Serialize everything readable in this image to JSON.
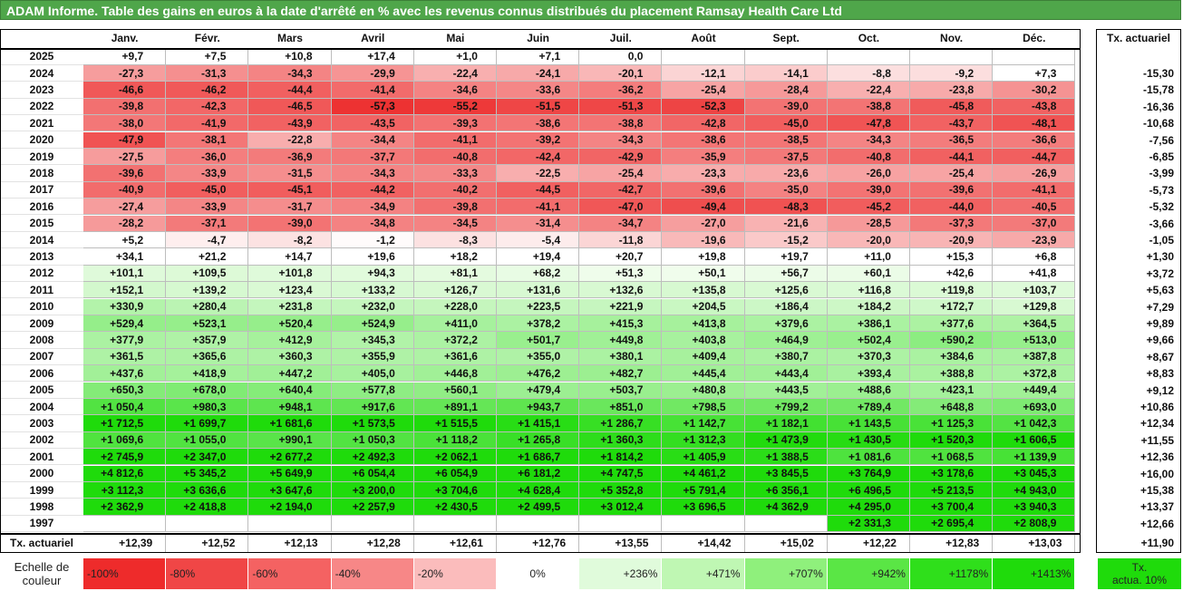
{
  "title": "ADAM Informe. Table des gains en euros à la date d'arrêté en % avec les revenus connus distribués du placement Ramsay Health Care Ltd",
  "chart_data": {
    "type": "heatmap",
    "months": [
      "Janv.",
      "Févr.",
      "Mars",
      "Avril",
      "Mai",
      "Juin",
      "Juil.",
      "Août",
      "Sept.",
      "Oct.",
      "Nov.",
      "Déc."
    ],
    "annual_header": "Tx. actuariel",
    "rows": [
      {
        "year": "2025",
        "values": [
          "+9,7",
          "+7,5",
          "+10,8",
          "+17,4",
          "+1,0",
          "+7,1",
          "0,0",
          "",
          "",
          "",
          "",
          ""
        ],
        "annual": ""
      },
      {
        "year": "2024",
        "values": [
          "-27,3",
          "-31,3",
          "-34,3",
          "-29,9",
          "-22,4",
          "-24,1",
          "-20,1",
          "-12,1",
          "-14,1",
          "-8,8",
          "-9,2",
          "+7,3"
        ],
        "annual": "-15,30"
      },
      {
        "year": "2023",
        "values": [
          "-46,6",
          "-46,2",
          "-44,4",
          "-41,4",
          "-34,6",
          "-33,6",
          "-36,2",
          "-25,4",
          "-28,4",
          "-22,4",
          "-23,8",
          "-30,2"
        ],
        "annual": "-15,78"
      },
      {
        "year": "2022",
        "values": [
          "-39,8",
          "-42,3",
          "-46,5",
          "-57,3",
          "-55,2",
          "-51,5",
          "-51,3",
          "-52,3",
          "-39,0",
          "-38,8",
          "-45,8",
          "-43,8"
        ],
        "annual": "-16,36"
      },
      {
        "year": "2021",
        "values": [
          "-38,0",
          "-41,9",
          "-43,9",
          "-43,5",
          "-39,3",
          "-38,6",
          "-38,8",
          "-42,8",
          "-45,0",
          "-47,8",
          "-43,7",
          "-48,1"
        ],
        "annual": "-10,68"
      },
      {
        "year": "2020",
        "values": [
          "-47,9",
          "-38,1",
          "-22,8",
          "-34,4",
          "-41,1",
          "-39,2",
          "-34,3",
          "-38,6",
          "-38,5",
          "-34,3",
          "-36,5",
          "-36,6"
        ],
        "annual": "-7,56"
      },
      {
        "year": "2019",
        "values": [
          "-27,5",
          "-36,0",
          "-36,9",
          "-37,7",
          "-40,8",
          "-42,4",
          "-42,9",
          "-35,9",
          "-37,5",
          "-40,8",
          "-44,1",
          "-44,7"
        ],
        "annual": "-6,85"
      },
      {
        "year": "2018",
        "values": [
          "-39,6",
          "-33,9",
          "-31,5",
          "-34,3",
          "-33,3",
          "-22,5",
          "-25,4",
          "-23,3",
          "-23,6",
          "-26,0",
          "-25,4",
          "-26,9"
        ],
        "annual": "-3,99"
      },
      {
        "year": "2017",
        "values": [
          "-40,9",
          "-45,0",
          "-45,1",
          "-44,2",
          "-40,2",
          "-44,5",
          "-42,7",
          "-39,6",
          "-35,0",
          "-39,0",
          "-39,6",
          "-41,1"
        ],
        "annual": "-5,73"
      },
      {
        "year": "2016",
        "values": [
          "-27,4",
          "-33,9",
          "-31,7",
          "-34,9",
          "-39,8",
          "-41,1",
          "-47,0",
          "-49,4",
          "-48,3",
          "-45,2",
          "-44,0",
          "-40,5"
        ],
        "annual": "-5,32"
      },
      {
        "year": "2015",
        "values": [
          "-28,2",
          "-37,1",
          "-39,0",
          "-34,8",
          "-34,5",
          "-31,4",
          "-34,7",
          "-27,0",
          "-21,6",
          "-28,5",
          "-37,3",
          "-37,0"
        ],
        "annual": "-3,66"
      },
      {
        "year": "2014",
        "values": [
          "+5,2",
          "-4,7",
          "-8,2",
          "-1,2",
          "-8,3",
          "-5,4",
          "-11,8",
          "-19,6",
          "-15,2",
          "-20,0",
          "-20,9",
          "-23,9"
        ],
        "annual": "-1,05"
      },
      {
        "year": "2013",
        "values": [
          "+34,1",
          "+21,2",
          "+14,7",
          "+19,6",
          "+18,2",
          "+19,4",
          "+20,7",
          "+19,8",
          "+19,7",
          "+11,0",
          "+15,3",
          "+6,8"
        ],
        "annual": "+1,30"
      },
      {
        "year": "2012",
        "values": [
          "+101,1",
          "+109,5",
          "+101,8",
          "+94,3",
          "+81,1",
          "+68,2",
          "+51,3",
          "+50,1",
          "+56,7",
          "+60,1",
          "+42,6",
          "+41,8"
        ],
        "annual": "+3,72"
      },
      {
        "year": "2011",
        "values": [
          "+152,1",
          "+139,2",
          "+123,4",
          "+133,2",
          "+126,7",
          "+131,6",
          "+132,6",
          "+135,8",
          "+125,6",
          "+116,8",
          "+119,8",
          "+103,7"
        ],
        "annual": "+5,63"
      },
      {
        "year": "2010",
        "values": [
          "+330,9",
          "+280,4",
          "+231,8",
          "+232,0",
          "+228,0",
          "+223,5",
          "+221,9",
          "+204,5",
          "+186,4",
          "+184,2",
          "+172,7",
          "+129,8"
        ],
        "annual": "+7,29"
      },
      {
        "year": "2009",
        "values": [
          "+529,4",
          "+523,1",
          "+520,4",
          "+524,9",
          "+411,0",
          "+378,2",
          "+415,3",
          "+413,8",
          "+379,6",
          "+386,1",
          "+377,6",
          "+364,5"
        ],
        "annual": "+9,89"
      },
      {
        "year": "2008",
        "values": [
          "+377,9",
          "+357,9",
          "+412,9",
          "+345,3",
          "+372,2",
          "+501,7",
          "+449,8",
          "+403,8",
          "+464,9",
          "+502,4",
          "+590,2",
          "+513,0"
        ],
        "annual": "+9,66"
      },
      {
        "year": "2007",
        "values": [
          "+361,5",
          "+365,6",
          "+360,3",
          "+355,9",
          "+361,6",
          "+355,0",
          "+380,1",
          "+409,4",
          "+380,7",
          "+370,3",
          "+384,6",
          "+387,8"
        ],
        "annual": "+8,67"
      },
      {
        "year": "2006",
        "values": [
          "+437,6",
          "+418,9",
          "+447,2",
          "+405,0",
          "+446,8",
          "+476,2",
          "+482,7",
          "+445,4",
          "+443,4",
          "+393,4",
          "+388,8",
          "+372,8"
        ],
        "annual": "+8,83"
      },
      {
        "year": "2005",
        "values": [
          "+650,3",
          "+678,0",
          "+640,4",
          "+577,8",
          "+560,1",
          "+479,4",
          "+503,7",
          "+480,8",
          "+443,5",
          "+488,6",
          "+423,1",
          "+449,4"
        ],
        "annual": "+9,12"
      },
      {
        "year": "2004",
        "values": [
          "+1 050,4",
          "+980,3",
          "+948,1",
          "+917,6",
          "+891,1",
          "+943,7",
          "+851,0",
          "+798,5",
          "+799,2",
          "+789,4",
          "+648,8",
          "+693,0"
        ],
        "annual": "+10,86"
      },
      {
        "year": "2003",
        "values": [
          "+1 712,5",
          "+1 699,7",
          "+1 681,6",
          "+1 573,5",
          "+1 515,5",
          "+1 415,1",
          "+1 286,7",
          "+1 142,7",
          "+1 182,1",
          "+1 143,5",
          "+1 125,3",
          "+1 042,3"
        ],
        "annual": "+12,34"
      },
      {
        "year": "2002",
        "values": [
          "+1 069,6",
          "+1 055,0",
          "+990,1",
          "+1 050,3",
          "+1 118,2",
          "+1 265,8",
          "+1 360,3",
          "+1 312,3",
          "+1 473,9",
          "+1 430,5",
          "+1 520,3",
          "+1 606,5"
        ],
        "annual": "+11,55"
      },
      {
        "year": "2001",
        "values": [
          "+2 745,9",
          "+2 347,0",
          "+2 677,2",
          "+2 492,3",
          "+2 062,1",
          "+1 686,7",
          "+1 814,2",
          "+1 405,9",
          "+1 388,5",
          "+1 081,6",
          "+1 068,5",
          "+1 139,9"
        ],
        "annual": "+12,36"
      },
      {
        "year": "2000",
        "values": [
          "+4 812,6",
          "+5 345,2",
          "+5 649,9",
          "+6 054,4",
          "+6 054,9",
          "+6 181,2",
          "+4 747,5",
          "+4 461,2",
          "+3 845,5",
          "+3 764,9",
          "+3 178,6",
          "+3 045,3"
        ],
        "annual": "+16,00"
      },
      {
        "year": "1999",
        "values": [
          "+3 112,3",
          "+3 636,6",
          "+3 647,6",
          "+3 200,0",
          "+3 704,6",
          "+4 628,4",
          "+5 352,8",
          "+5 791,4",
          "+6 356,1",
          "+6 496,5",
          "+5 213,5",
          "+4 943,0"
        ],
        "annual": "+15,38"
      },
      {
        "year": "1998",
        "values": [
          "+2 362,9",
          "+2 418,8",
          "+2 194,0",
          "+2 257,9",
          "+2 430,5",
          "+2 499,5",
          "+3 012,4",
          "+3 696,5",
          "+4 362,9",
          "+4 295,0",
          "+3 700,4",
          "+3 940,3"
        ],
        "annual": "+13,37"
      },
      {
        "year": "1997",
        "values": [
          "",
          "",
          "",
          "",
          "",
          "",
          "",
          "",
          "",
          "+2 331,3",
          "+2 695,4",
          "+2 808,9"
        ],
        "annual": "+12,66"
      }
    ],
    "footer": {
      "label": "Tx. actuariel",
      "values": [
        "+12,39",
        "+12,52",
        "+12,13",
        "+12,28",
        "+12,61",
        "+12,76",
        "+13,55",
        "+14,42",
        "+15,02",
        "+12,22",
        "+12,83",
        "+13,03"
      ],
      "annual": "+11,90"
    },
    "scale": {
      "label_line1": "Echelle de",
      "label_line2": "couleur",
      "items": [
        {
          "label": "-100%",
          "color": "#ee2b2b",
          "align": "left"
        },
        {
          "label": "-80%",
          "color": "#f04646",
          "align": "left"
        },
        {
          "label": "-60%",
          "color": "#f46262",
          "align": "left"
        },
        {
          "label": "-40%",
          "color": "#f78787",
          "align": "left"
        },
        {
          "label": "-20%",
          "color": "#fbbcbc",
          "align": "left"
        },
        {
          "label": "0%",
          "color": "#ffffff",
          "align": "center"
        },
        {
          "label": "+236%",
          "color": "#e0fbdb",
          "align": "right"
        },
        {
          "label": "+471%",
          "color": "#bff7b3",
          "align": "right"
        },
        {
          "label": "+707%",
          "color": "#8ff07c",
          "align": "right"
        },
        {
          "label": "+942%",
          "color": "#5ae645",
          "align": "right"
        },
        {
          "label": "+1178%",
          "color": "#2fdf1b",
          "align": "right"
        },
        {
          "label": "+1413%",
          "color": "#1fdb0b",
          "align": "right"
        }
      ],
      "target_label_line1": "Tx.",
      "target_label_line2": "actua. 10%",
      "target_color": "#1fdb0b"
    }
  }
}
